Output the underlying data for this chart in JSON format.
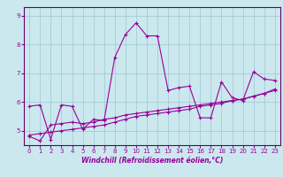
{
  "xlabel": "Windchill (Refroidissement éolien,°C)",
  "bg_color": "#cbe8ee",
  "grid_color": "#9dc8d4",
  "line_color": "#990099",
  "spine_color": "#660066",
  "xlim": [
    -0.5,
    23.5
  ],
  "ylim": [
    4.5,
    9.3
  ],
  "xticks": [
    0,
    1,
    2,
    3,
    4,
    5,
    6,
    7,
    8,
    9,
    10,
    11,
    12,
    13,
    14,
    15,
    16,
    17,
    18,
    19,
    20,
    21,
    22,
    23
  ],
  "yticks": [
    5,
    6,
    7,
    8,
    9
  ],
  "series": [
    [
      5.85,
      5.9,
      4.7,
      5.9,
      5.85,
      5.05,
      5.4,
      5.35,
      7.55,
      8.35,
      8.75,
      8.3,
      8.3,
      6.4,
      6.5,
      6.55,
      5.45,
      5.45,
      6.7,
      6.15,
      6.05,
      7.05,
      6.8,
      6.75
    ],
    [
      4.8,
      4.65,
      5.2,
      5.25,
      5.3,
      5.25,
      5.3,
      5.4,
      5.45,
      5.55,
      5.6,
      5.65,
      5.7,
      5.75,
      5.8,
      5.85,
      5.9,
      5.95,
      6.0,
      6.05,
      6.1,
      6.2,
      6.3,
      6.4
    ],
    [
      4.85,
      4.9,
      4.95,
      5.0,
      5.05,
      5.1,
      5.15,
      5.2,
      5.3,
      5.4,
      5.5,
      5.55,
      5.6,
      5.65,
      5.7,
      5.75,
      5.85,
      5.9,
      5.95,
      6.05,
      6.1,
      6.2,
      6.3,
      6.45
    ]
  ],
  "xlabel_fontsize": 5.5,
  "tick_fontsize": 5,
  "marker_size": 3,
  "line_width": 0.8
}
